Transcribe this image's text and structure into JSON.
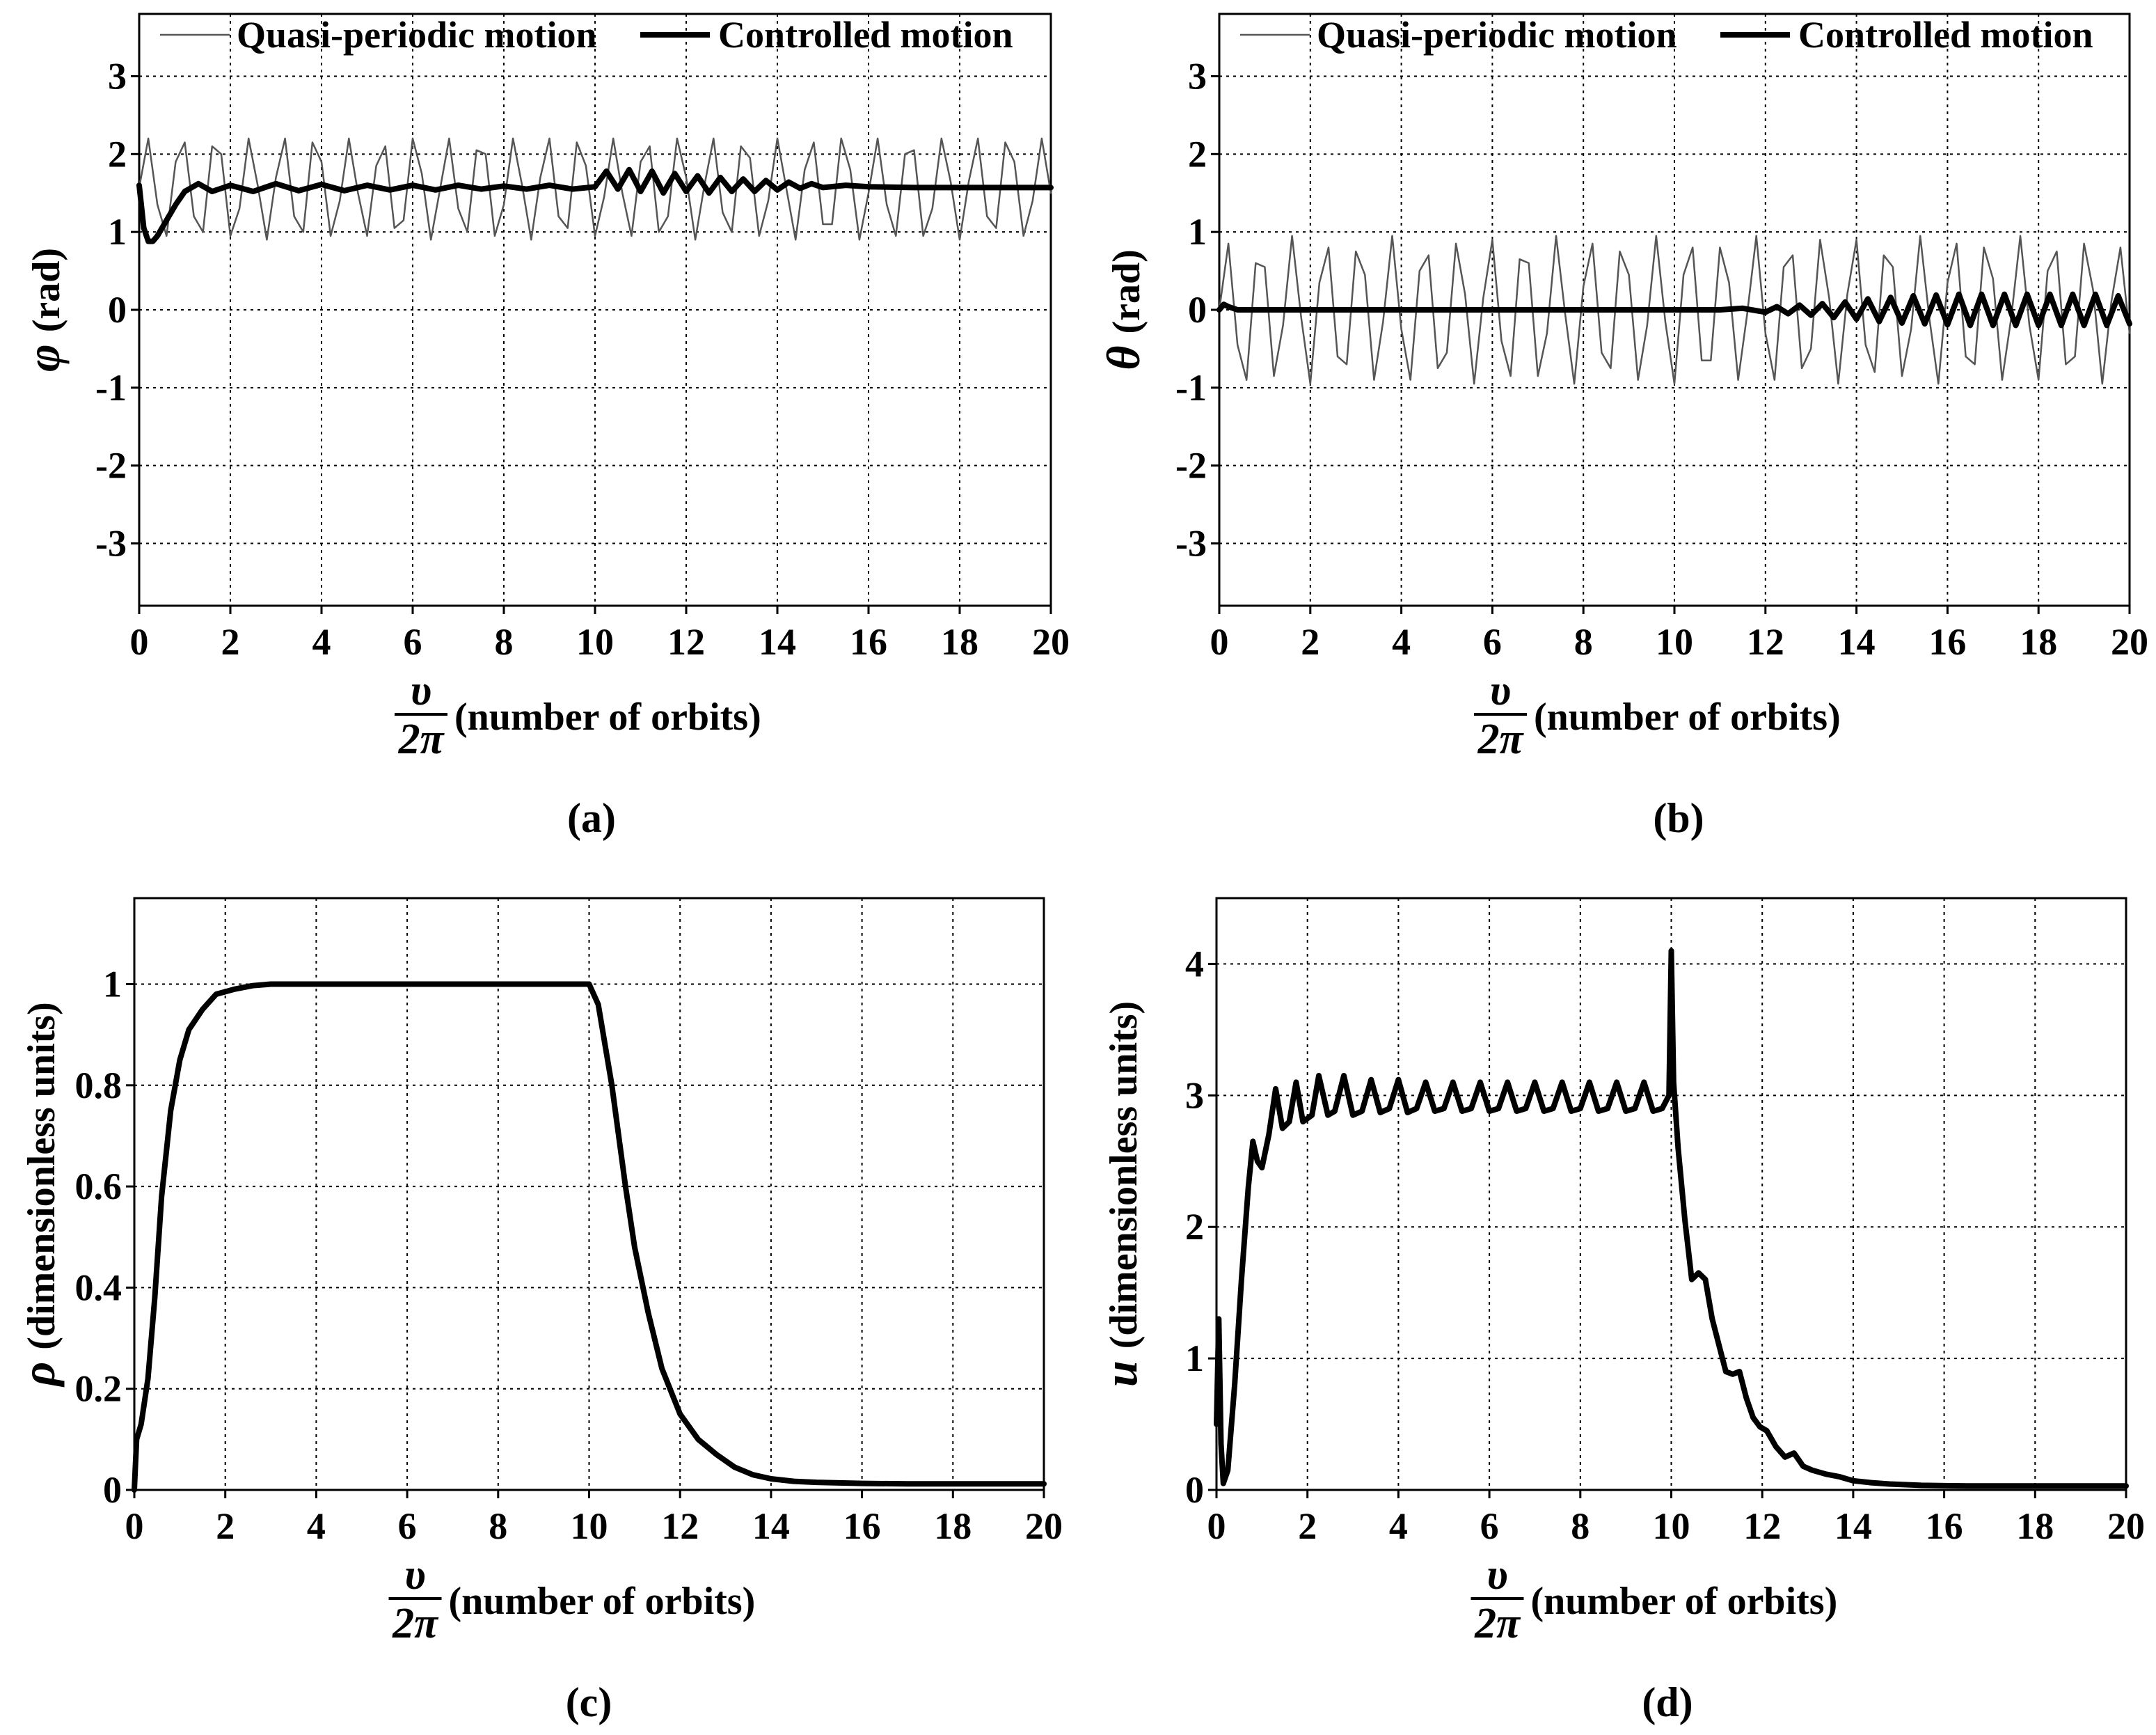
{
  "figure": {
    "legend": {
      "quasi": "Quasi-periodic motion",
      "controlled": "Controlled motion"
    },
    "x_label": {
      "numerator": "υ",
      "denominator": "2π",
      "text": "(number of orbits)"
    }
  },
  "colors": {
    "grid": "#000000",
    "quasi_line": "#555555",
    "controlled_line": "#000000"
  },
  "chart_data": [
    {
      "id": "a",
      "panel_label": "(a)",
      "type": "line",
      "ylabel_symbol": "φ",
      "ylabel_text": "(rad)",
      "xlim": [
        0,
        20
      ],
      "ylim": [
        -3.8,
        3.8
      ],
      "xticks": [
        0,
        2,
        4,
        6,
        8,
        10,
        12,
        14,
        16,
        18,
        20
      ],
      "yticks": [
        -3,
        -2,
        -1,
        0,
        1,
        2,
        3
      ],
      "grid": true,
      "legend": "top",
      "series": [
        {
          "name": "Quasi-periodic motion",
          "x": [
            0,
            0.2,
            0.4,
            0.6,
            0.8,
            1.0,
            1.2,
            1.4,
            1.6,
            1.8,
            2.0,
            2.2,
            2.4,
            2.6,
            2.8,
            3.0,
            3.2,
            3.4,
            3.6,
            3.8,
            4.0,
            4.2,
            4.4,
            4.6,
            4.8,
            5.0,
            5.2,
            5.4,
            5.6,
            5.8,
            6.0,
            6.2,
            6.4,
            6.6,
            6.8,
            7.0,
            7.2,
            7.4,
            7.6,
            7.8,
            8.0,
            8.2,
            8.4,
            8.6,
            8.8,
            9.0,
            9.2,
            9.4,
            9.6,
            9.8,
            10.0,
            10.2,
            10.4,
            10.6,
            10.8,
            11.0,
            11.2,
            11.4,
            11.6,
            11.8,
            12.0,
            12.2,
            12.4,
            12.6,
            12.8,
            13.0,
            13.2,
            13.4,
            13.6,
            13.8,
            14.0,
            14.2,
            14.4,
            14.6,
            14.8,
            15.0,
            15.2,
            15.4,
            15.6,
            15.8,
            16.0,
            16.2,
            16.4,
            16.6,
            16.8,
            17.0,
            17.2,
            17.4,
            17.6,
            17.8,
            18.0,
            18.2,
            18.4,
            18.6,
            18.8,
            19.0,
            19.2,
            19.4,
            19.6,
            19.8,
            20.0
          ],
          "y": [
            1.57,
            2.2,
            1.35,
            0.95,
            1.9,
            2.15,
            1.2,
            1.0,
            2.1,
            2.0,
            0.95,
            1.3,
            2.2,
            1.6,
            0.9,
            1.7,
            2.2,
            1.2,
            1.0,
            2.15,
            1.9,
            0.95,
            1.4,
            2.2,
            1.5,
            0.95,
            1.85,
            2.1,
            1.05,
            1.15,
            2.2,
            1.75,
            0.9,
            1.55,
            2.2,
            1.3,
            1.0,
            2.05,
            2.0,
            0.95,
            1.35,
            2.2,
            1.6,
            0.9,
            1.7,
            2.2,
            1.2,
            1.05,
            2.15,
            1.85,
            0.95,
            1.45,
            2.2,
            1.5,
            0.95,
            1.9,
            2.1,
            1.0,
            1.2,
            2.2,
            1.7,
            0.9,
            1.6,
            2.2,
            1.25,
            1.0,
            2.1,
            1.95,
            0.95,
            1.4,
            2.2,
            1.55,
            0.9,
            1.8,
            2.15,
            1.1,
            1.1,
            2.2,
            1.8,
            0.9,
            1.5,
            2.2,
            1.35,
            0.95,
            2.0,
            2.05,
            0.95,
            1.3,
            2.2,
            1.65,
            0.9,
            1.65,
            2.2,
            1.2,
            1.05,
            2.15,
            1.9,
            0.95,
            1.4,
            2.2,
            1.5
          ]
        },
        {
          "name": "Controlled motion",
          "x": [
            0,
            0.1,
            0.2,
            0.3,
            0.4,
            0.6,
            0.8,
            1.0,
            1.3,
            1.6,
            2.0,
            2.5,
            3.0,
            3.5,
            4.0,
            4.5,
            5.0,
            5.5,
            6.0,
            6.5,
            7.0,
            7.5,
            8.0,
            8.5,
            9.0,
            9.5,
            10.0,
            10.25,
            10.5,
            10.75,
            11.0,
            11.25,
            11.5,
            11.75,
            12.0,
            12.25,
            12.5,
            12.75,
            13.0,
            13.25,
            13.5,
            13.75,
            14.0,
            14.25,
            14.5,
            14.75,
            15.0,
            15.5,
            16.0,
            17.0,
            18.0,
            19.0,
            20.0
          ],
          "y": [
            1.6,
            1.05,
            0.88,
            0.88,
            0.95,
            1.15,
            1.35,
            1.52,
            1.62,
            1.52,
            1.6,
            1.52,
            1.62,
            1.53,
            1.61,
            1.53,
            1.6,
            1.54,
            1.6,
            1.54,
            1.6,
            1.55,
            1.59,
            1.55,
            1.6,
            1.55,
            1.58,
            1.78,
            1.55,
            1.8,
            1.52,
            1.78,
            1.5,
            1.75,
            1.52,
            1.72,
            1.5,
            1.7,
            1.52,
            1.68,
            1.52,
            1.66,
            1.54,
            1.64,
            1.56,
            1.62,
            1.57,
            1.6,
            1.58,
            1.57,
            1.57,
            1.57,
            1.57
          ]
        }
      ]
    },
    {
      "id": "b",
      "panel_label": "(b)",
      "type": "line",
      "ylabel_symbol": "θ",
      "ylabel_text": "(rad)",
      "xlim": [
        0,
        20
      ],
      "ylim": [
        -3.8,
        3.8
      ],
      "xticks": [
        0,
        2,
        4,
        6,
        8,
        10,
        12,
        14,
        16,
        18,
        20
      ],
      "yticks": [
        -3,
        -2,
        -1,
        0,
        1,
        2,
        3
      ],
      "grid": true,
      "legend": "top",
      "series": [
        {
          "name": "Quasi-periodic motion",
          "x": [
            0,
            0.2,
            0.4,
            0.6,
            0.8,
            1.0,
            1.2,
            1.4,
            1.6,
            1.8,
            2.0,
            2.2,
            2.4,
            2.6,
            2.8,
            3.0,
            3.2,
            3.4,
            3.6,
            3.8,
            4.0,
            4.2,
            4.4,
            4.6,
            4.8,
            5.0,
            5.2,
            5.4,
            5.6,
            5.8,
            6.0,
            6.2,
            6.4,
            6.6,
            6.8,
            7.0,
            7.2,
            7.4,
            7.6,
            7.8,
            8.0,
            8.2,
            8.4,
            8.6,
            8.8,
            9.0,
            9.2,
            9.4,
            9.6,
            9.8,
            10.0,
            10.2,
            10.4,
            10.6,
            10.8,
            11.0,
            11.2,
            11.4,
            11.6,
            11.8,
            12.0,
            12.2,
            12.4,
            12.6,
            12.8,
            13.0,
            13.2,
            13.4,
            13.6,
            13.8,
            14.0,
            14.2,
            14.4,
            14.6,
            14.8,
            15.0,
            15.2,
            15.4,
            15.6,
            15.8,
            16.0,
            16.2,
            16.4,
            16.6,
            16.8,
            17.0,
            17.2,
            17.4,
            17.6,
            17.8,
            18.0,
            18.2,
            18.4,
            18.6,
            18.8,
            19.0,
            19.2,
            19.4,
            19.6,
            19.8,
            20.0
          ],
          "y": [
            0,
            0.85,
            -0.45,
            -0.9,
            0.6,
            0.55,
            -0.85,
            -0.2,
            0.95,
            -0.1,
            -0.95,
            0.35,
            0.8,
            -0.6,
            -0.7,
            0.75,
            0.45,
            -0.9,
            -0.15,
            0.95,
            -0.25,
            -0.9,
            0.5,
            0.7,
            -0.75,
            -0.55,
            0.85,
            0.2,
            -0.95,
            0.15,
            0.9,
            -0.4,
            -0.85,
            0.65,
            0.6,
            -0.85,
            -0.3,
            0.95,
            -0.05,
            -0.95,
            0.3,
            0.85,
            -0.55,
            -0.75,
            0.75,
            0.45,
            -0.9,
            -0.2,
            0.95,
            -0.15,
            -0.95,
            0.45,
            0.8,
            -0.65,
            -0.65,
            0.8,
            0.35,
            -0.9,
            -0.05,
            0.95,
            -0.3,
            -0.9,
            0.55,
            0.7,
            -0.75,
            -0.5,
            0.9,
            0.15,
            -0.95,
            0.2,
            0.9,
            -0.45,
            -0.8,
            0.7,
            0.55,
            -0.85,
            -0.25,
            0.95,
            -0.1,
            -0.95,
            0.35,
            0.85,
            -0.6,
            -0.7,
            0.8,
            0.4,
            -0.9,
            -0.1,
            0.95,
            -0.2,
            -0.9,
            0.5,
            0.75,
            -0.7,
            -0.6,
            0.85,
            0.25,
            -0.95,
            0.1,
            0.8,
            -0.3
          ]
        },
        {
          "name": "Controlled motion",
          "x": [
            0,
            0.1,
            0.2,
            0.4,
            1.0,
            4.0,
            8.0,
            11.0,
            11.5,
            12.0,
            12.25,
            12.5,
            12.75,
            13.0,
            13.25,
            13.5,
            13.75,
            14.0,
            14.25,
            14.5,
            14.75,
            15.0,
            15.25,
            15.5,
            15.75,
            16.0,
            16.25,
            16.5,
            16.75,
            17.0,
            17.25,
            17.5,
            17.75,
            18.0,
            18.25,
            18.5,
            18.75,
            19.0,
            19.25,
            19.5,
            19.75,
            20.0
          ],
          "y": [
            0,
            0.07,
            0.04,
            0,
            0,
            0,
            0,
            0,
            0.02,
            -0.03,
            0.04,
            -0.05,
            0.06,
            -0.07,
            0.08,
            -0.1,
            0.1,
            -0.12,
            0.14,
            -0.15,
            0.16,
            -0.17,
            0.18,
            -0.18,
            0.19,
            -0.19,
            0.2,
            -0.2,
            0.2,
            -0.2,
            0.2,
            -0.2,
            0.2,
            -0.2,
            0.2,
            -0.2,
            0.2,
            -0.2,
            0.2,
            -0.2,
            0.18,
            -0.18
          ]
        }
      ]
    },
    {
      "id": "c",
      "panel_label": "(c)",
      "type": "line",
      "ylabel_symbol": "ρ",
      "ylabel_text": "(dimensionless units)",
      "xlim": [
        0,
        20
      ],
      "ylim": [
        0,
        1.17
      ],
      "xticks": [
        0,
        2,
        4,
        6,
        8,
        10,
        12,
        14,
        16,
        18,
        20
      ],
      "yticks": [
        0,
        0.2,
        0.4,
        0.6,
        0.8,
        1
      ],
      "ytick_labels": [
        "0",
        "0.2",
        "0.4",
        "0.6",
        "0.8",
        "1"
      ],
      "grid": true,
      "legend": "none",
      "series": [
        {
          "name": "ρ",
          "x": [
            0,
            0.05,
            0.15,
            0.3,
            0.45,
            0.6,
            0.8,
            1.0,
            1.2,
            1.5,
            1.8,
            2.2,
            2.6,
            3.0,
            4.0,
            6.0,
            8.0,
            9.5,
            10.0,
            10.2,
            10.5,
            10.8,
            11.0,
            11.3,
            11.6,
            12.0,
            12.4,
            12.8,
            13.2,
            13.6,
            14.0,
            14.5,
            15.0,
            16.0,
            17.0,
            18.0,
            19.0,
            20.0
          ],
          "y": [
            0,
            0.1,
            0.13,
            0.22,
            0.38,
            0.58,
            0.75,
            0.85,
            0.91,
            0.95,
            0.98,
            0.99,
            0.997,
            1.0,
            1.0,
            1.0,
            1.0,
            1.0,
            1.0,
            0.96,
            0.8,
            0.6,
            0.48,
            0.35,
            0.24,
            0.15,
            0.1,
            0.07,
            0.045,
            0.03,
            0.022,
            0.017,
            0.015,
            0.013,
            0.012,
            0.012,
            0.012,
            0.012
          ]
        }
      ]
    },
    {
      "id": "d",
      "panel_label": "(d)",
      "type": "line",
      "ylabel_symbol": "u",
      "ylabel_text": "(dimensionless units)",
      "xlim": [
        0,
        20
      ],
      "ylim": [
        0,
        4.5
      ],
      "xticks": [
        0,
        2,
        4,
        6,
        8,
        10,
        12,
        14,
        16,
        18,
        20
      ],
      "yticks": [
        0,
        1,
        2,
        3,
        4
      ],
      "grid": true,
      "legend": "none",
      "series": [
        {
          "name": "u",
          "x": [
            0,
            0.05,
            0.1,
            0.15,
            0.25,
            0.4,
            0.55,
            0.7,
            0.8,
            0.9,
            1.0,
            1.15,
            1.3,
            1.45,
            1.6,
            1.75,
            1.9,
            2.1,
            2.25,
            2.45,
            2.6,
            2.8,
            3.0,
            3.2,
            3.4,
            3.6,
            3.8,
            4.0,
            4.2,
            4.4,
            4.6,
            4.8,
            5.0,
            5.2,
            5.4,
            5.6,
            5.8,
            6.0,
            6.2,
            6.4,
            6.6,
            6.8,
            7.0,
            7.2,
            7.4,
            7.6,
            7.8,
            8.0,
            8.2,
            8.4,
            8.6,
            8.8,
            9.0,
            9.2,
            9.4,
            9.6,
            9.8,
            9.95,
            10.0,
            10.05,
            10.15,
            10.3,
            10.45,
            10.6,
            10.75,
            10.9,
            11.05,
            11.2,
            11.35,
            11.5,
            11.65,
            11.8,
            11.95,
            12.1,
            12.3,
            12.5,
            12.7,
            12.9,
            13.1,
            13.4,
            13.7,
            14.0,
            14.4,
            14.8,
            15.5,
            16.5,
            18.0,
            20.0
          ],
          "y": [
            0.5,
            1.3,
            0.35,
            0.05,
            0.15,
            0.8,
            1.6,
            2.3,
            2.65,
            2.5,
            2.45,
            2.7,
            3.05,
            2.75,
            2.8,
            3.1,
            2.8,
            2.85,
            3.15,
            2.85,
            2.88,
            3.15,
            2.85,
            2.88,
            3.12,
            2.87,
            2.9,
            3.12,
            2.87,
            2.9,
            3.1,
            2.88,
            2.9,
            3.1,
            2.88,
            2.9,
            3.1,
            2.88,
            2.9,
            3.1,
            2.88,
            2.9,
            3.1,
            2.88,
            2.9,
            3.1,
            2.88,
            2.9,
            3.1,
            2.88,
            2.9,
            3.1,
            2.88,
            2.9,
            3.1,
            2.88,
            2.9,
            3.0,
            4.1,
            3.1,
            2.6,
            2.05,
            1.6,
            1.65,
            1.6,
            1.3,
            1.1,
            0.9,
            0.88,
            0.9,
            0.7,
            0.55,
            0.48,
            0.45,
            0.33,
            0.25,
            0.28,
            0.18,
            0.15,
            0.12,
            0.1,
            0.07,
            0.055,
            0.045,
            0.035,
            0.03,
            0.03,
            0.03
          ]
        }
      ]
    }
  ]
}
